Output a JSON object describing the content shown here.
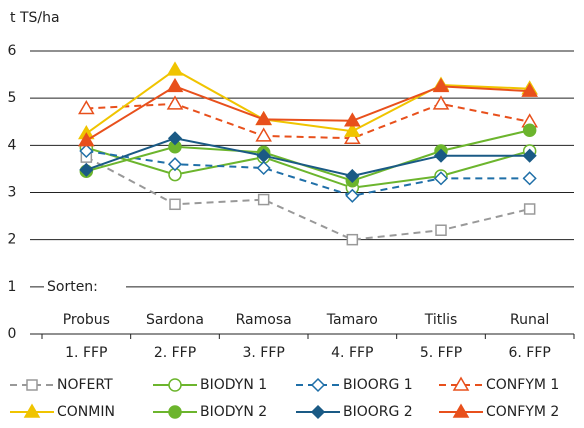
{
  "chart_data": {
    "type": "line",
    "y_label": "t TS/ha",
    "annotation": "Sorten:",
    "categories": [
      "Probus",
      "Sardona",
      "Ramosa",
      "Tamaro",
      "Titlis",
      "Runal"
    ],
    "sublabels": [
      "1. FFP",
      "2. FFP",
      "3. FFP",
      "4. FFP",
      "5. FFP",
      "6. FFP"
    ],
    "ylim": [
      0,
      6
    ],
    "yticks": [
      0,
      1,
      2,
      3,
      4,
      5,
      6
    ],
    "grid": true,
    "series": [
      {
        "name": "NOFERT",
        "color": "#999999",
        "dashed": true,
        "marker": "square",
        "filled": false,
        "values": [
          3.75,
          2.75,
          2.85,
          2.0,
          2.2,
          2.65
        ]
      },
      {
        "name": "BIODYN 1",
        "color": "#6cb52d",
        "dashed": false,
        "marker": "circle",
        "filled": false,
        "values": [
          3.95,
          3.38,
          3.75,
          3.1,
          3.35,
          3.88
        ]
      },
      {
        "name": "BIOORG 1",
        "color": "#1f6fa8",
        "dashed": true,
        "marker": "diamond",
        "filled": false,
        "values": [
          3.88,
          3.6,
          3.52,
          2.93,
          3.3,
          3.3
        ]
      },
      {
        "name": "CONFYM 1",
        "color": "#e8501c",
        "dashed": true,
        "marker": "triangle",
        "filled": false,
        "values": [
          4.78,
          4.88,
          4.2,
          4.15,
          4.88,
          4.5
        ]
      },
      {
        "name": "CONMIN",
        "color": "#f0c400",
        "dashed": false,
        "marker": "triangle",
        "filled": true,
        "values": [
          4.25,
          5.6,
          4.55,
          4.3,
          5.28,
          5.2
        ]
      },
      {
        "name": "BIODYN 2",
        "color": "#6cb52d",
        "dashed": false,
        "marker": "circle",
        "filled": true,
        "values": [
          3.45,
          3.97,
          3.85,
          3.25,
          3.88,
          4.32
        ]
      },
      {
        "name": "BIOORG 2",
        "color": "#1a5a85",
        "dashed": false,
        "marker": "diamond",
        "filled": true,
        "values": [
          3.48,
          4.15,
          3.78,
          3.35,
          3.78,
          3.78
        ]
      },
      {
        "name": "CONFYM 2",
        "color": "#e8501c",
        "dashed": false,
        "marker": "triangle",
        "filled": true,
        "values": [
          4.1,
          5.25,
          4.55,
          4.52,
          5.25,
          5.15
        ]
      }
    ]
  }
}
